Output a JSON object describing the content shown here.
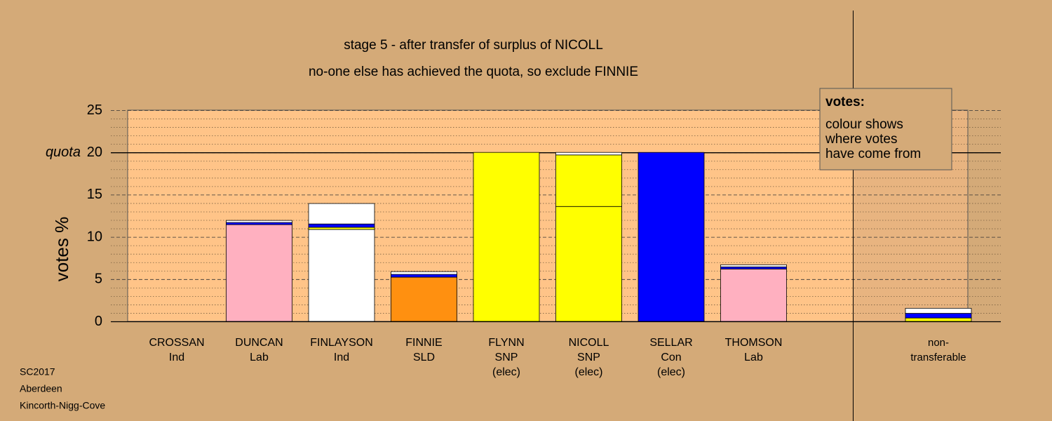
{
  "chart_data": {
    "type": "stacked-bar",
    "title": "stage 5 - after transfer of surplus of NICOLL",
    "subtitle": "no-one else has achieved the quota, so exclude FINNIE",
    "y_label": "votes %",
    "quota_label": "quota",
    "quota": 20,
    "ylim": [
      0,
      25
    ],
    "yticks": [
      0,
      5,
      10,
      15,
      20,
      25
    ],
    "yticks_minor": [
      1,
      2,
      3,
      4,
      6,
      7,
      8,
      9,
      11,
      12,
      13,
      14,
      16,
      17,
      18,
      19,
      21,
      22,
      23,
      24
    ],
    "categories": [
      [
        "CROSSAN",
        "Ind"
      ],
      [
        "DUNCAN",
        "Lab"
      ],
      [
        "FINLAYSON",
        "Ind"
      ],
      [
        "FINNIE",
        "SLD"
      ],
      [
        "FLYNN",
        "SNP",
        "(elec)"
      ],
      [
        "NICOLL",
        "SNP",
        "(elec)"
      ],
      [
        "SELLAR",
        "Con",
        "(elec)"
      ],
      [
        "THOMSON",
        "Lab"
      ],
      [
        "non-",
        "transferable"
      ]
    ],
    "stacks": [
      [
        {
          "color": "#ffb0c0",
          "value": 0
        }
      ],
      [
        {
          "color": "#ffb0c0",
          "value": 11.45
        },
        {
          "color": "#0000ff",
          "value": 0.25
        },
        {
          "color": "#ffffff",
          "value": 0.25
        }
      ],
      [
        {
          "color": "#ffffff",
          "value": 10.88
        },
        {
          "color": "#ffff00",
          "value": 0.25
        },
        {
          "color": "#0000ff",
          "value": 0.4
        },
        {
          "color": "#ffffff",
          "value": 2.42
        }
      ],
      [
        {
          "color": "#ff9010",
          "value": 5.23
        },
        {
          "color": "#0000ff",
          "value": 0.33
        },
        {
          "color": "#ffffff",
          "value": 0.33
        }
      ],
      [
        {
          "color": "#ffff00",
          "value": 20
        }
      ],
      [
        {
          "color": "#ffff00",
          "value": 13.6
        },
        {
          "color": "#ffff00",
          "value": 6.1
        },
        {
          "color": "#ffffff",
          "value": 0.3
        }
      ],
      [
        {
          "color": "#0000ff",
          "value": 20
        }
      ],
      [
        {
          "color": "#ffb0c0",
          "value": 6.2
        },
        {
          "color": "#0000ff",
          "value": 0.25
        },
        {
          "color": "#ffffff",
          "value": 0.25
        }
      ],
      [
        {
          "color": "#ffff00",
          "value": 0.4
        },
        {
          "color": "#0000ff",
          "value": 0.55
        },
        {
          "color": "#ffffff",
          "value": 0.6
        }
      ]
    ],
    "legend_title": "votes:",
    "legend_lines": [
      "colour shows",
      "where votes",
      "have come from"
    ],
    "footer": [
      "SC2017",
      "Aberdeen",
      "Kincorth-Nigg-Cove"
    ]
  }
}
